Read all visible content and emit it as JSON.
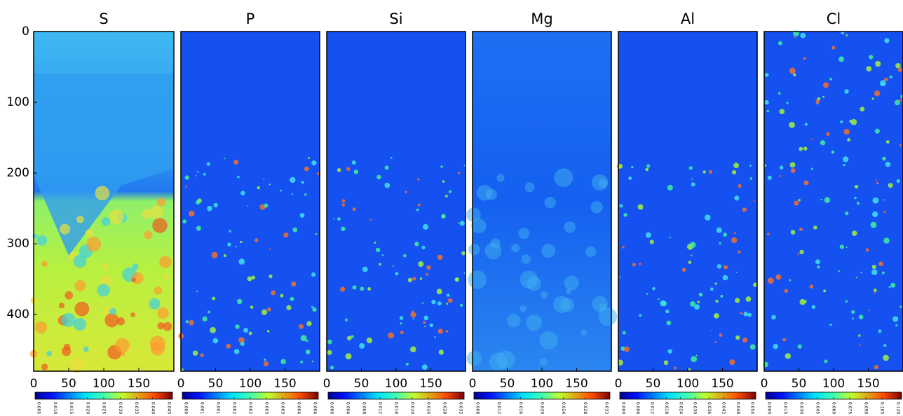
{
  "chart_data": [
    {
      "type": "heatmap",
      "title": "S",
      "xlim": [
        0,
        200
      ],
      "xticks": [
        0,
        50,
        100,
        150
      ],
      "ylim": [
        0,
        480
      ],
      "yticks": [
        0,
        100,
        200,
        300,
        400
      ],
      "clim": [
        0.005,
        0.045
      ],
      "cticks": [
        {
          "value": 0.005,
          "label": "0.005"
        },
        {
          "value": 0.01,
          "label": "0.010"
        },
        {
          "value": 0.015,
          "label": "0.015"
        },
        {
          "value": 0.02,
          "label": "0.020"
        },
        {
          "value": 0.025,
          "label": "0.025"
        },
        {
          "value": 0.03,
          "label": "0.030"
        },
        {
          "value": 0.035,
          "label": "0.035"
        },
        {
          "value": 0.04,
          "label": "0.040"
        },
        {
          "value": 0.045,
          "label": "0.045"
        }
      ]
    },
    {
      "type": "heatmap",
      "title": "P",
      "xlim": [
        0,
        200
      ],
      "xticks": [
        0,
        50,
        100,
        150
      ],
      "ylim": [
        0,
        480
      ],
      "clim": [
        0,
        0.004
      ],
      "cticks": [
        {
          "value": 0,
          "label": "0.000"
        },
        {
          "value": 0.0005,
          "label": "0.001"
        },
        {
          "value": 0.001,
          "label": "0.001"
        },
        {
          "value": 0.0015,
          "label": "0.002"
        },
        {
          "value": 0.002,
          "label": "0.002"
        },
        {
          "value": 0.0025,
          "label": "0.003"
        },
        {
          "value": 0.003,
          "label": "0.003"
        },
        {
          "value": 0.0035,
          "label": "0.004"
        },
        {
          "value": 0.004,
          "label": "0.004"
        }
      ]
    },
    {
      "type": "heatmap",
      "title": "Si",
      "xlim": [
        0,
        200
      ],
      "xticks": [
        0,
        50,
        100,
        150
      ],
      "ylim": [
        0,
        480
      ],
      "clim": [
        0,
        0.032
      ],
      "cticks": [
        {
          "value": 0,
          "label": "0.000"
        },
        {
          "value": 0.004,
          "label": "0.004"
        },
        {
          "value": 0.008,
          "label": "0.008"
        },
        {
          "value": 0.012,
          "label": "0.012"
        },
        {
          "value": 0.016,
          "label": "0.016"
        },
        {
          "value": 0.02,
          "label": "0.020"
        },
        {
          "value": 0.024,
          "label": "0.024"
        },
        {
          "value": 0.028,
          "label": "0.028"
        },
        {
          "value": 0.032,
          "label": "0.032"
        }
      ]
    },
    {
      "type": "heatmap",
      "title": "Mg",
      "xlim": [
        0,
        200
      ],
      "xticks": [
        0,
        50,
        100,
        150
      ],
      "ylim": [
        0,
        480
      ],
      "clim": [
        0.008,
        0.032
      ],
      "cticks": [
        {
          "value": 0.008,
          "label": "0.008"
        },
        {
          "value": 0.012,
          "label": "0.012"
        },
        {
          "value": 0.016,
          "label": "0.016"
        },
        {
          "value": 0.02,
          "label": "0.020"
        },
        {
          "value": 0.024,
          "label": "0.024"
        },
        {
          "value": 0.028,
          "label": "0.028"
        },
        {
          "value": 0.032,
          "label": "0.032"
        }
      ]
    },
    {
      "type": "heatmap",
      "title": "Al",
      "xlim": [
        0,
        200
      ],
      "xticks": [
        0,
        50,
        100,
        150
      ],
      "ylim": [
        0,
        480
      ],
      "clim": [
        0,
        0.054
      ],
      "cticks": [
        {
          "value": 0,
          "label": "0.000"
        },
        {
          "value": 0.006,
          "label": "0.006"
        },
        {
          "value": 0.012,
          "label": "0.012"
        },
        {
          "value": 0.018,
          "label": "0.018"
        },
        {
          "value": 0.024,
          "label": "0.024"
        },
        {
          "value": 0.03,
          "label": "0.030"
        },
        {
          "value": 0.036,
          "label": "0.036"
        },
        {
          "value": 0.042,
          "label": "0.042"
        },
        {
          "value": 0.048,
          "label": "0.048"
        },
        {
          "value": 0.054,
          "label": "0.054"
        }
      ]
    },
    {
      "type": "heatmap",
      "title": "Cl",
      "xlim": [
        0,
        200
      ],
      "xticks": [
        0,
        50,
        100,
        150
      ],
      "ylim": [
        0,
        480
      ],
      "clim": [
        0,
        0.12
      ],
      "cticks": [
        {
          "value": 0,
          "label": "0.000"
        },
        {
          "value": 0.015,
          "label": "0.015"
        },
        {
          "value": 0.03,
          "label": "0.030"
        },
        {
          "value": 0.045,
          "label": "0.045"
        },
        {
          "value": 0.06,
          "label": "0.060"
        },
        {
          "value": 0.075,
          "label": "0.075"
        },
        {
          "value": 0.09,
          "label": "0.090"
        },
        {
          "value": 0.105,
          "label": "0.105"
        },
        {
          "value": 0.12,
          "label": "0.120"
        }
      ]
    }
  ]
}
